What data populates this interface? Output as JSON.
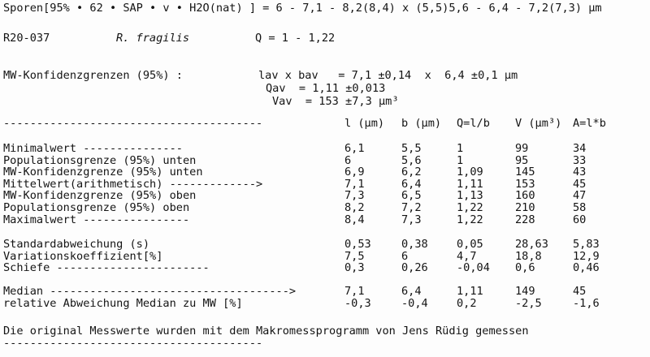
{
  "header": {
    "summary": "Sporen[95% • 62 • SAP • v • H2O(nat) ] = 6 - 7,1 - 8,2(8,4) x (5,5)5,6 - 6,4 - 7,2(7,3) µm",
    "id": "R20-037",
    "species": "R. fragilis",
    "q_range": "Q = 1 - 1,22"
  },
  "confidence": {
    "label": "MW-Konfidenzgrenzen (95%) :",
    "lav_bav": "lav x bav   = 7,1 ±0,14  x  6,4 ±0,1 µm",
    "qav": "Qav  = 1,11 ±0,013",
    "vav": "Vav  = 153 ±7,3 µm³"
  },
  "table": {
    "separator": "---------------------------------------",
    "columns": [
      "l (µm)",
      "b (µm)",
      "Q=l/b",
      "V (µm³)",
      "A=l*b"
    ],
    "groups": [
      [
        {
          "label": "Minimalwert ---------------",
          "values": [
            "6,1",
            "5,5",
            "1",
            "99",
            "34"
          ]
        },
        {
          "label": "Populationsgrenze (95%) unten",
          "values": [
            "6",
            "5,6",
            "1",
            "95",
            "33"
          ]
        },
        {
          "label": "MW-Konfidenzgrenze (95%) unten",
          "values": [
            "6,9",
            "6,2",
            "1,09",
            "145",
            "43"
          ]
        },
        {
          "label": "Mittelwert(arithmetisch) ------------->",
          "values": [
            "7,1",
            "6,4",
            "1,11",
            "153",
            "45"
          ]
        },
        {
          "label": "MW-Konfidenzgrenze (95%) oben",
          "values": [
            "7,3",
            "6,5",
            "1,13",
            "160",
            "47"
          ]
        },
        {
          "label": "Populationsgrenze (95%) oben",
          "values": [
            "8,2",
            "7,2",
            "1,22",
            "210",
            "58"
          ]
        },
        {
          "label": "Maximalwert ----------------",
          "values": [
            "8,4",
            "7,3",
            "1,22",
            "228",
            "60"
          ]
        }
      ],
      [
        {
          "label": "Standardabweichung (s)",
          "values": [
            "0,53",
            "0,38",
            "0,05",
            "28,63",
            "5,83"
          ]
        },
        {
          "label": "Variationskoeffizient[%]",
          "values": [
            "7,5",
            "6",
            "4,7",
            "18,8",
            "12,9"
          ]
        },
        {
          "label": "Schiefe -----------------------",
          "values": [
            "0,3",
            "0,26",
            "-0,04",
            "0,6",
            "0,46"
          ]
        }
      ],
      [
        {
          "label": "Median ------------------------------------>",
          "values": [
            "7,1",
            "6,4",
            "1,11",
            "149",
            "45"
          ]
        },
        {
          "label": "relative Abweichung Median zu MW [%]",
          "values": [
            "-0,3",
            "-0,4",
            "0,2",
            "-2,5",
            "-1,6"
          ]
        }
      ]
    ]
  },
  "footer": {
    "note": "Die original Messwerte wurden mit dem Makromessprogramm von Jens Rüdig gemessen",
    "separator": "---------------------------------------"
  }
}
